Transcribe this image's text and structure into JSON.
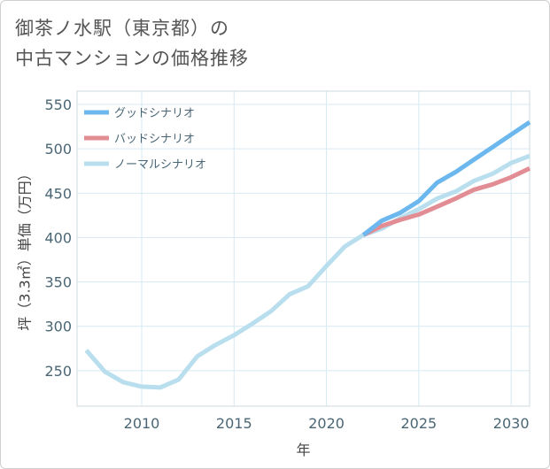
{
  "title_lines": [
    "御茶ノ水駅（東京都）の",
    "中古マンションの価格推移"
  ],
  "chart_data": {
    "type": "line",
    "title": "御茶ノ水駅（東京都）の中古マンションの価格推移",
    "xlabel": "年",
    "ylabel": "坪（3.3㎡）単価（万円）",
    "xlim": [
      2006.5,
      2031
    ],
    "ylim": [
      210,
      565
    ],
    "xticks": [
      2010,
      2015,
      2020,
      2025,
      2030
    ],
    "yticks": [
      250,
      300,
      350,
      400,
      450,
      500,
      550
    ],
    "grid": true,
    "legend_position": "top-left",
    "series": [
      {
        "name": "グッドシナリオ",
        "color": "#6cb8ee",
        "points": [
          [
            2022,
            403
          ],
          [
            2023,
            419
          ],
          [
            2024,
            428
          ],
          [
            2025,
            441
          ],
          [
            2026,
            462
          ],
          [
            2027,
            474
          ],
          [
            2028,
            488
          ],
          [
            2029,
            502
          ],
          [
            2030,
            516
          ],
          [
            2031,
            530
          ]
        ]
      },
      {
        "name": "バッドシナリオ",
        "color": "#e28c94",
        "points": [
          [
            2022,
            403
          ],
          [
            2023,
            413
          ],
          [
            2024,
            420
          ],
          [
            2025,
            426
          ],
          [
            2026,
            435
          ],
          [
            2027,
            444
          ],
          [
            2028,
            454
          ],
          [
            2029,
            460
          ],
          [
            2030,
            468
          ],
          [
            2031,
            478
          ]
        ]
      },
      {
        "name": "ノーマルシナリオ",
        "color": "#b9dfef",
        "points": [
          [
            2007,
            273
          ],
          [
            2008,
            249
          ],
          [
            2009,
            237
          ],
          [
            2010,
            232
          ],
          [
            2011,
            231
          ],
          [
            2012,
            240
          ],
          [
            2013,
            266
          ],
          [
            2014,
            279
          ],
          [
            2015,
            290
          ],
          [
            2016,
            303
          ],
          [
            2017,
            317
          ],
          [
            2018,
            336
          ],
          [
            2019,
            345
          ],
          [
            2020,
            368
          ],
          [
            2021,
            390
          ],
          [
            2022,
            403
          ],
          [
            2023,
            410
          ],
          [
            2024,
            422
          ],
          [
            2025,
            432
          ],
          [
            2026,
            444
          ],
          [
            2027,
            452
          ],
          [
            2028,
            464
          ],
          [
            2029,
            472
          ],
          [
            2030,
            484
          ],
          [
            2031,
            492
          ]
        ]
      }
    ]
  }
}
